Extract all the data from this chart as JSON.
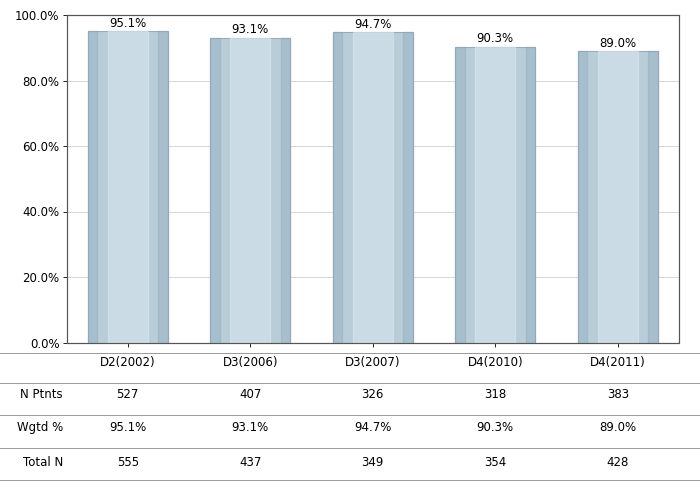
{
  "categories": [
    "D2(2002)",
    "D3(2006)",
    "D3(2007)",
    "D4(2010)",
    "D4(2011)"
  ],
  "values": [
    95.1,
    93.1,
    94.7,
    90.3,
    89.0
  ],
  "bar_color": "#b8cdd8",
  "bar_edge_color": "#9aaabb",
  "n_ptnts": [
    527,
    407,
    326,
    318,
    383
  ],
  "wgtd_pct": [
    "95.1%",
    "93.1%",
    "94.7%",
    "90.3%",
    "89.0%"
  ],
  "total_n": [
    555,
    437,
    349,
    354,
    428
  ],
  "ylim": [
    0,
    100
  ],
  "yticks": [
    0,
    20,
    40,
    60,
    80,
    100
  ],
  "ytick_labels": [
    "0.0%",
    "20.0%",
    "40.0%",
    "60.0%",
    "80.0%",
    "100.0%"
  ],
  "label_row1": "N Ptnts",
  "label_row2": "Wgtd %",
  "label_row3": "Total N",
  "background_color": "#ffffff",
  "bar_width": 0.65,
  "annotation_fontsize": 8.5,
  "table_fontsize": 8.5,
  "axis_fontsize": 8.5
}
